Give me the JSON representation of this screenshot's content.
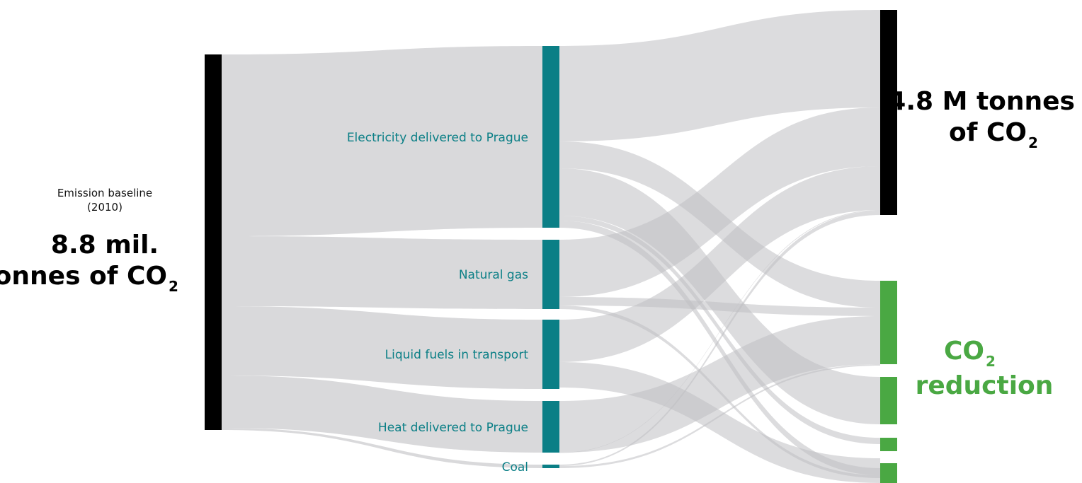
{
  "source": {
    "caption": "Emission baseline",
    "year": "(2010)",
    "total_line1": "8.8 mil.",
    "total_line2": "tonnes of CO",
    "subscript": "2"
  },
  "nodes": [
    "Electricity delivered to Prague",
    "Natural gas",
    "Liquid fuels in transport",
    "Heat delivered to Prague",
    "Coal"
  ],
  "remaining": {
    "line1": "4.8 M tonnes",
    "line2": "of CO",
    "subscript": "2"
  },
  "reduction": {
    "line1": "CO",
    "subscript": "2",
    "line2": "reduction"
  }
}
